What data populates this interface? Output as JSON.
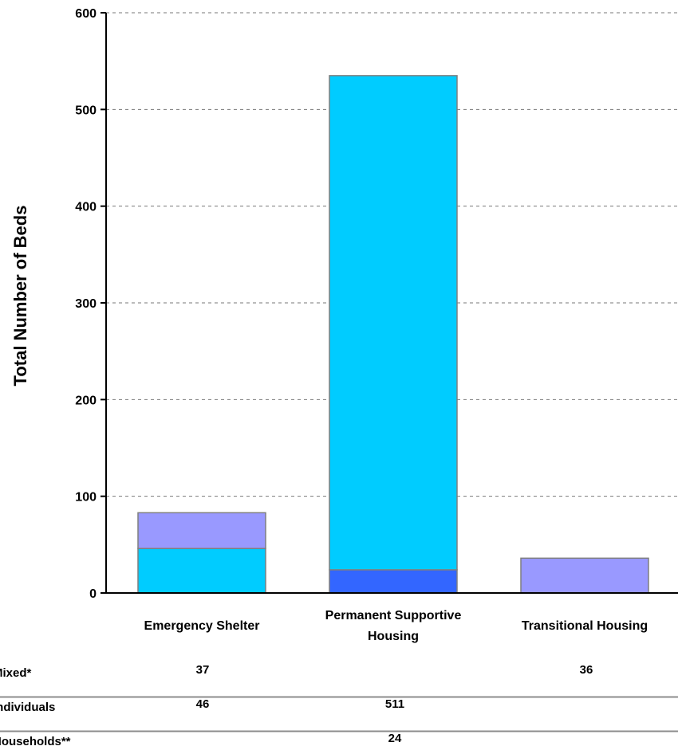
{
  "chart_data": {
    "type": "bar",
    "stacked": true,
    "title": "",
    "xlabel": "",
    "ylabel": "Total Number of Beds",
    "ylim": [
      0,
      600
    ],
    "yticks": [
      0,
      100,
      200,
      300,
      400,
      500,
      600
    ],
    "grid": true,
    "categories": [
      [
        "Emergency Shelter"
      ],
      [
        "Permanent Supportive",
        "Housing"
      ],
      [
        "Transitional Housing"
      ]
    ],
    "series": [
      {
        "name": "Households**",
        "color": "#3366ff",
        "values": [
          null,
          24,
          null
        ]
      },
      {
        "name": "Individuals",
        "color": "#00ccff",
        "values": [
          46,
          511,
          null
        ]
      },
      {
        "name": "Mixed*",
        "color": "#9999ff",
        "values": [
          37,
          null,
          36
        ]
      }
    ],
    "table_rows": [
      {
        "label": "Mixed*",
        "values": [
          "37",
          "",
          "36"
        ]
      },
      {
        "label": "Individuals",
        "values": [
          "46",
          "511",
          ""
        ]
      },
      {
        "label": "Households**",
        "values": [
          "",
          "24",
          ""
        ]
      }
    ]
  }
}
